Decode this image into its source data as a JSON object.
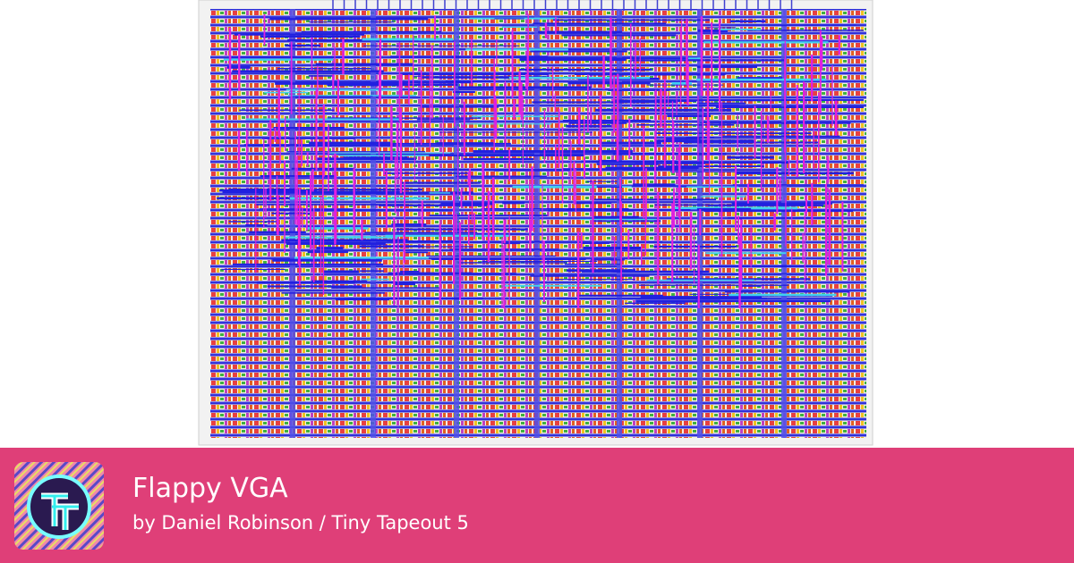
{
  "card": {
    "title": "Flappy VGA",
    "subtitle": "by Daniel Robinson / Tiny Tapeout 5"
  }
}
